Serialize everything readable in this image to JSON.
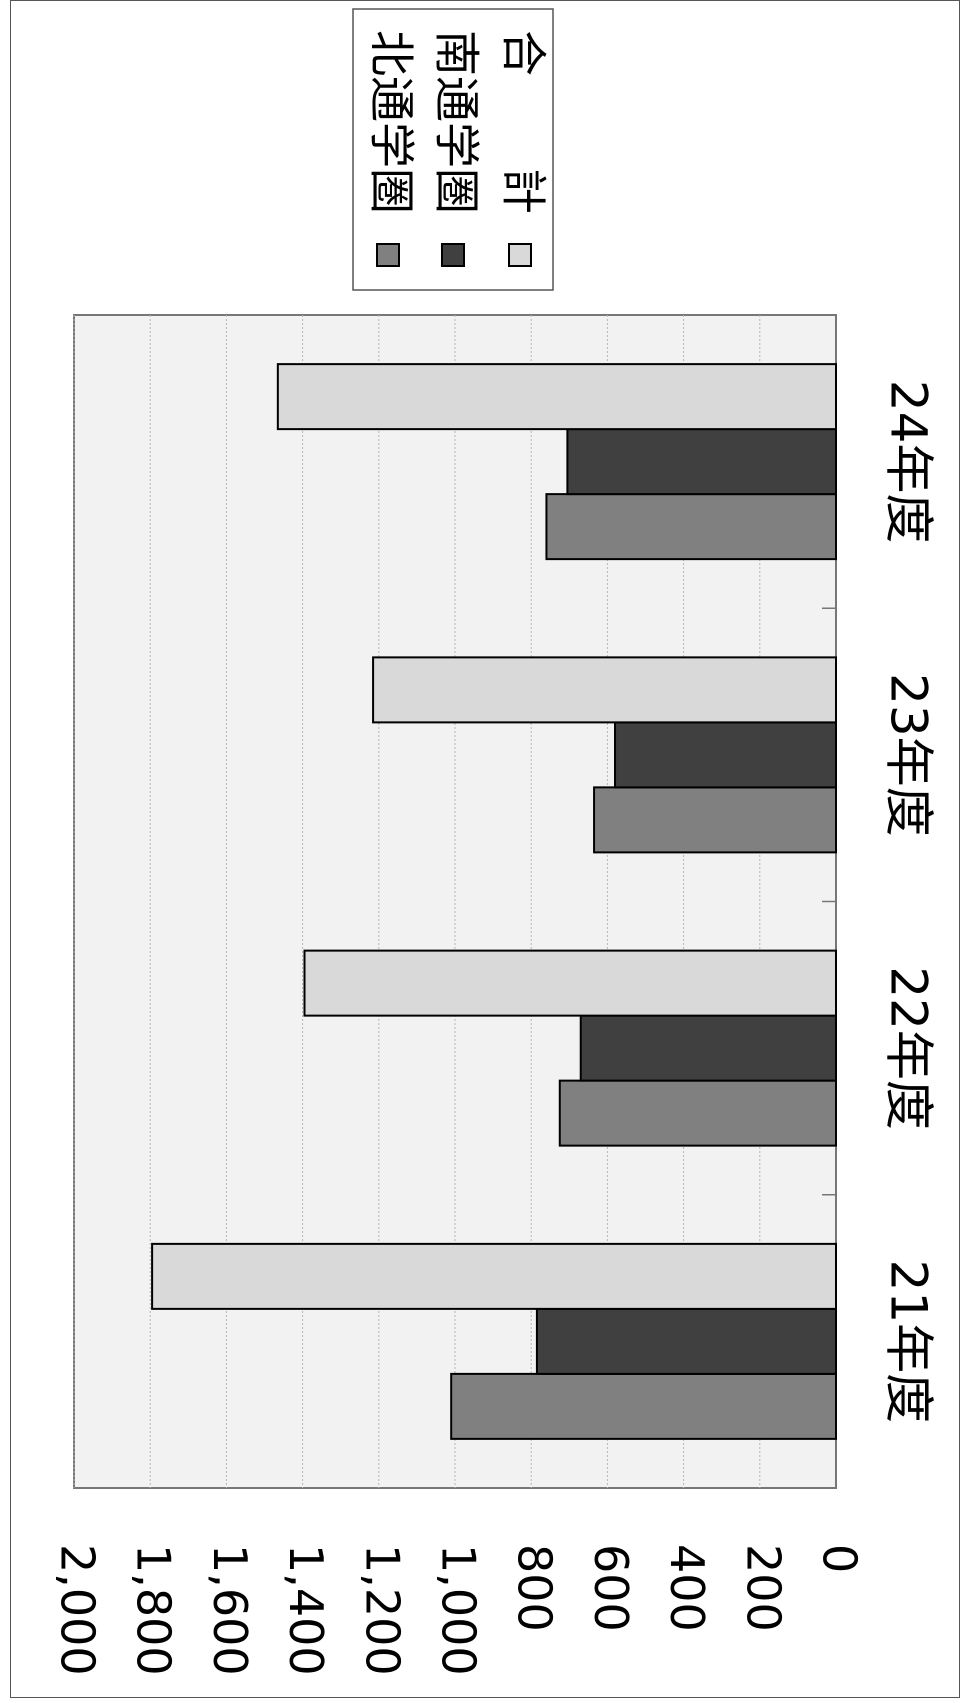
{
  "chart_data": {
    "type": "bar",
    "orientation": "horizontal",
    "categories": [
      "21年度",
      "22年度",
      "23年度",
      "24年度"
    ],
    "series": [
      {
        "name": "北通学圏",
        "values": [
          1010,
          725,
          635,
          760
        ],
        "color": "#808080"
      },
      {
        "name": "南通学圏",
        "values": [
          785,
          670,
          580,
          705
        ],
        "color": "#404040"
      },
      {
        "name": "合　　計",
        "values": [
          1795,
          1395,
          1215,
          1465
        ],
        "color": "#d9d9d9"
      }
    ],
    "ylim": [
      0,
      2000
    ],
    "yticks": [
      "0",
      "200",
      "400",
      "600",
      "800",
      "1,000",
      "1,200",
      "1,400",
      "1,600",
      "1,800",
      "2,000"
    ],
    "tick_step": 200,
    "grid": true,
    "plot_background": "#f2f2f2",
    "legend_position": "top-right",
    "rotation": "90deg clockwise"
  }
}
